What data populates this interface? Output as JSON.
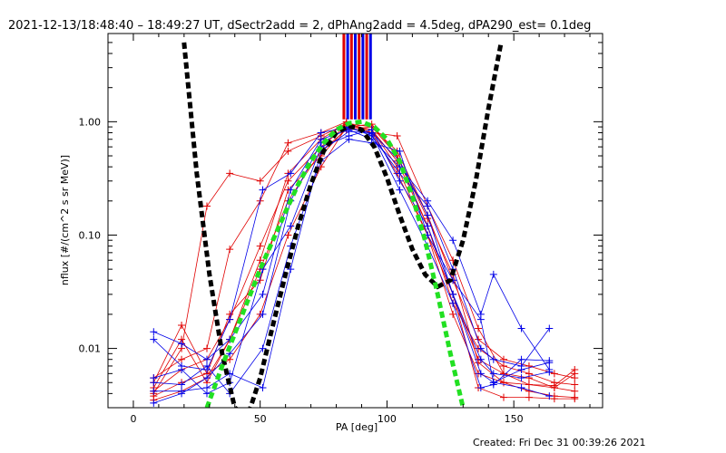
{
  "chart_data": {
    "type": "line",
    "title": "2021-12-13/18:48:40 – 18:49:27 UT, dSectr2add = 2, dPhAng2add = 4.5deg, dPA290_est=  0.1deg",
    "xlabel": "PA [deg]",
    "ylabel": "nflux [#/(cm^2 s sr MeV)]",
    "footer": "Created: Fri Dec 31 00:39:26 2021",
    "xlim": [
      -10,
      185
    ],
    "ylim": [
      0.003,
      6.0
    ],
    "yscale": "log",
    "xticks": [
      0,
      50,
      100,
      150
    ],
    "xtick_labels": [
      "0",
      "50",
      "100",
      "150"
    ],
    "yticks": [
      0.01,
      0.1,
      1.0
    ],
    "ytick_labels": [
      "0.01",
      "0.10",
      "1.00"
    ],
    "grid": false,
    "red_series": [
      {
        "x": [
          8,
          19,
          29,
          38,
          50,
          61,
          74,
          84,
          94,
          104,
          116,
          126,
          136,
          146,
          156,
          166,
          174
        ],
        "y": [
          0.005,
          0.016,
          0.006,
          0.008,
          0.02,
          0.1,
          0.4,
          0.9,
          0.95,
          0.5,
          0.12,
          0.03,
          0.008,
          0.006,
          0.0055,
          0.0045,
          0.0042
        ]
      },
      {
        "x": [
          8,
          19,
          29,
          38,
          50,
          61,
          74,
          84,
          94,
          104,
          116,
          126,
          136,
          146,
          156,
          166,
          174
        ],
        "y": [
          0.0045,
          0.012,
          0.005,
          0.012,
          0.05,
          0.2,
          0.55,
          0.85,
          0.9,
          0.55,
          0.15,
          0.04,
          0.012,
          0.008,
          0.007,
          0.006,
          0.0055
        ]
      },
      {
        "x": [
          8,
          19,
          29,
          38,
          50,
          61,
          74,
          84,
          94,
          104,
          116,
          126,
          136,
          146,
          156,
          166,
          174
        ],
        "y": [
          0.004,
          0.01,
          0.18,
          0.35,
          0.3,
          0.55,
          0.75,
          0.95,
          0.85,
          0.45,
          0.12,
          0.025,
          0.01,
          0.007,
          0.006,
          0.005,
          0.0048
        ]
      },
      {
        "x": [
          8,
          19,
          29,
          38,
          50,
          61,
          74,
          84,
          94,
          104,
          116,
          126,
          136,
          146,
          156,
          166,
          174
        ],
        "y": [
          0.0055,
          0.008,
          0.01,
          0.075,
          0.2,
          0.65,
          0.8,
          1.0,
          0.8,
          0.75,
          0.18,
          0.06,
          0.015,
          0.006,
          0.0048,
          0.0045,
          0.006
        ]
      },
      {
        "x": [
          8,
          19,
          29,
          38,
          50,
          61,
          74,
          84,
          94,
          104,
          116,
          126,
          136,
          146,
          156,
          166,
          174
        ],
        "y": [
          0.0042,
          0.0065,
          0.008,
          0.018,
          0.08,
          0.3,
          0.6,
          0.92,
          0.85,
          0.4,
          0.1,
          0.02,
          0.006,
          0.005,
          0.0042,
          0.0038,
          0.0037
        ]
      },
      {
        "x": [
          8,
          19,
          29,
          38,
          50,
          61,
          74,
          84,
          94,
          104,
          116,
          126,
          136,
          146,
          156,
          166,
          174
        ],
        "y": [
          0.0038,
          0.005,
          0.006,
          0.02,
          0.04,
          0.25,
          0.5,
          0.88,
          0.8,
          0.35,
          0.1,
          0.03,
          0.0045,
          0.0037,
          0.0037,
          0.0036,
          0.0036
        ]
      },
      {
        "x": [
          8,
          19,
          29,
          38,
          50,
          61,
          74,
          84,
          94,
          104,
          116,
          126,
          136,
          146,
          156,
          166,
          174
        ],
        "y": [
          0.0035,
          0.0042,
          0.0055,
          0.012,
          0.06,
          0.35,
          0.7,
          0.97,
          0.9,
          0.5,
          0.14,
          0.045,
          0.0075,
          0.005,
          0.0048,
          0.0047,
          0.0065
        ]
      }
    ],
    "blue_series": [
      {
        "x": [
          8,
          19,
          29,
          38,
          51,
          62,
          74,
          85,
          94,
          105,
          116,
          126,
          137,
          142,
          153,
          164
        ],
        "y": [
          0.014,
          0.011,
          0.008,
          0.012,
          0.03,
          0.25,
          0.7,
          0.85,
          0.7,
          0.4,
          0.2,
          0.09,
          0.02,
          0.045,
          0.015,
          0.0065
        ]
      },
      {
        "x": [
          8,
          19,
          29,
          38,
          51,
          62,
          74,
          85,
          94,
          105,
          116,
          126,
          137,
          142,
          153,
          164
        ],
        "y": [
          0.012,
          0.007,
          0.0065,
          0.018,
          0.25,
          0.35,
          0.8,
          0.9,
          0.75,
          0.35,
          0.18,
          0.05,
          0.01,
          0.008,
          0.007,
          0.015
        ]
      },
      {
        "x": [
          8,
          19,
          29,
          38,
          51,
          62,
          74,
          85,
          94,
          105,
          116,
          126,
          137,
          142,
          153,
          164
        ],
        "y": [
          0.0055,
          0.0065,
          0.004,
          0.005,
          0.05,
          0.12,
          0.6,
          0.75,
          0.85,
          0.3,
          0.12,
          0.03,
          0.008,
          0.006,
          0.0055,
          0.0062
        ]
      },
      {
        "x": [
          8,
          19,
          29,
          38,
          51,
          62,
          74,
          85,
          94,
          105,
          116,
          126,
          137,
          142,
          153,
          164
        ],
        "y": [
          0.005,
          0.0048,
          0.007,
          0.004,
          0.01,
          0.08,
          0.45,
          0.7,
          0.65,
          0.55,
          0.1,
          0.04,
          0.018,
          0.005,
          0.0045,
          0.0038
        ]
      },
      {
        "x": [
          8,
          19,
          29,
          38,
          51,
          62,
          74,
          85,
          94,
          105,
          116,
          126,
          137,
          142,
          153,
          164
        ],
        "y": [
          0.0042,
          0.0042,
          0.0045,
          0.006,
          0.0045,
          0.05,
          0.55,
          0.82,
          0.8,
          0.45,
          0.15,
          0.03,
          0.006,
          0.005,
          0.0065,
          0.0075
        ]
      },
      {
        "x": [
          8,
          19,
          29,
          38,
          51,
          62,
          74,
          85,
          94,
          105,
          116,
          126,
          137,
          142,
          153,
          164
        ],
        "y": [
          0.0033,
          0.004,
          0.0055,
          0.009,
          0.02,
          0.2,
          0.65,
          0.88,
          0.78,
          0.25,
          0.08,
          0.025,
          0.0045,
          0.0048,
          0.008,
          0.0078
        ]
      }
    ],
    "red_bars_x": [
      83,
      86,
      89,
      92
    ],
    "blue_bars_x": [
      84.5,
      87.5,
      90.5,
      93.5
    ],
    "bar_range": [
      1.05,
      6.0
    ],
    "black_model": {
      "x": [
        20,
        25,
        30,
        35,
        40,
        45,
        50,
        55,
        60,
        65,
        70,
        75,
        80,
        85,
        90,
        95,
        100,
        105,
        110,
        115,
        120,
        125,
        130,
        135,
        140,
        145
      ],
      "y": [
        5.0,
        0.35,
        0.045,
        0.009,
        0.003,
        0.0025,
        0.0055,
        0.016,
        0.045,
        0.12,
        0.28,
        0.55,
        0.8,
        0.92,
        0.85,
        0.6,
        0.32,
        0.15,
        0.075,
        0.045,
        0.035,
        0.04,
        0.09,
        0.3,
        1.3,
        5.0
      ]
    },
    "green_model": {
      "x": [
        29,
        35,
        40,
        45,
        50,
        55,
        60,
        65,
        70,
        75,
        80,
        85,
        90,
        95,
        100,
        105,
        110,
        115,
        120,
        125,
        130
      ],
      "y": [
        0.003,
        0.007,
        0.0135,
        0.026,
        0.05,
        0.09,
        0.16,
        0.28,
        0.45,
        0.65,
        0.85,
        0.97,
        1.0,
        0.9,
        0.7,
        0.45,
        0.22,
        0.09,
        0.03,
        0.009,
        0.003
      ]
    },
    "colors": {
      "red": "#e00000",
      "blue": "#0000e8",
      "black": "#000000",
      "green": "#22e022",
      "axis": "#000000",
      "background": "#ffffff"
    }
  }
}
